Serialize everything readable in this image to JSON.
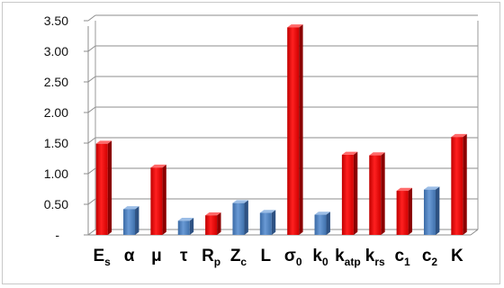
{
  "chart_data": {
    "type": "bar",
    "title": "",
    "xlabel": "",
    "ylabel": "",
    "ylim": [
      0,
      3.5
    ],
    "yticks": [
      "-",
      "0.50",
      "1.00",
      "1.50",
      "2.00",
      "2.50",
      "3.00",
      "3.50"
    ],
    "grid": true,
    "legend": "none",
    "colors": {
      "red": "#ee1111",
      "blue": "#4f81bd"
    },
    "categories": [
      {
        "base": "E",
        "sub": "s",
        "value": 1.49,
        "color": "red"
      },
      {
        "base": "α",
        "sub": "",
        "value": 0.42,
        "color": "blue"
      },
      {
        "base": "μ",
        "sub": "",
        "value": 1.1,
        "color": "red"
      },
      {
        "base": "τ",
        "sub": "",
        "value": 0.23,
        "color": "blue"
      },
      {
        "base": "R",
        "sub": "p",
        "value": 0.32,
        "color": "red"
      },
      {
        "base": "Z",
        "sub": "c",
        "value": 0.52,
        "color": "blue"
      },
      {
        "base": "L",
        "sub": "",
        "value": 0.36,
        "color": "blue"
      },
      {
        "base": "σ",
        "sub": "0",
        "value": 3.39,
        "color": "red"
      },
      {
        "base": "k",
        "sub": "0",
        "value": 0.33,
        "color": "blue"
      },
      {
        "base": "k",
        "sub": "atp",
        "value": 1.31,
        "color": "red"
      },
      {
        "base": "k",
        "sub": "rs",
        "value": 1.3,
        "color": "red"
      },
      {
        "base": "c",
        "sub": "1",
        "value": 0.72,
        "color": "red"
      },
      {
        "base": "c",
        "sub": "2",
        "value": 0.74,
        "color": "blue"
      },
      {
        "base": "K",
        "sub": "",
        "value": 1.6,
        "color": "red"
      }
    ]
  }
}
